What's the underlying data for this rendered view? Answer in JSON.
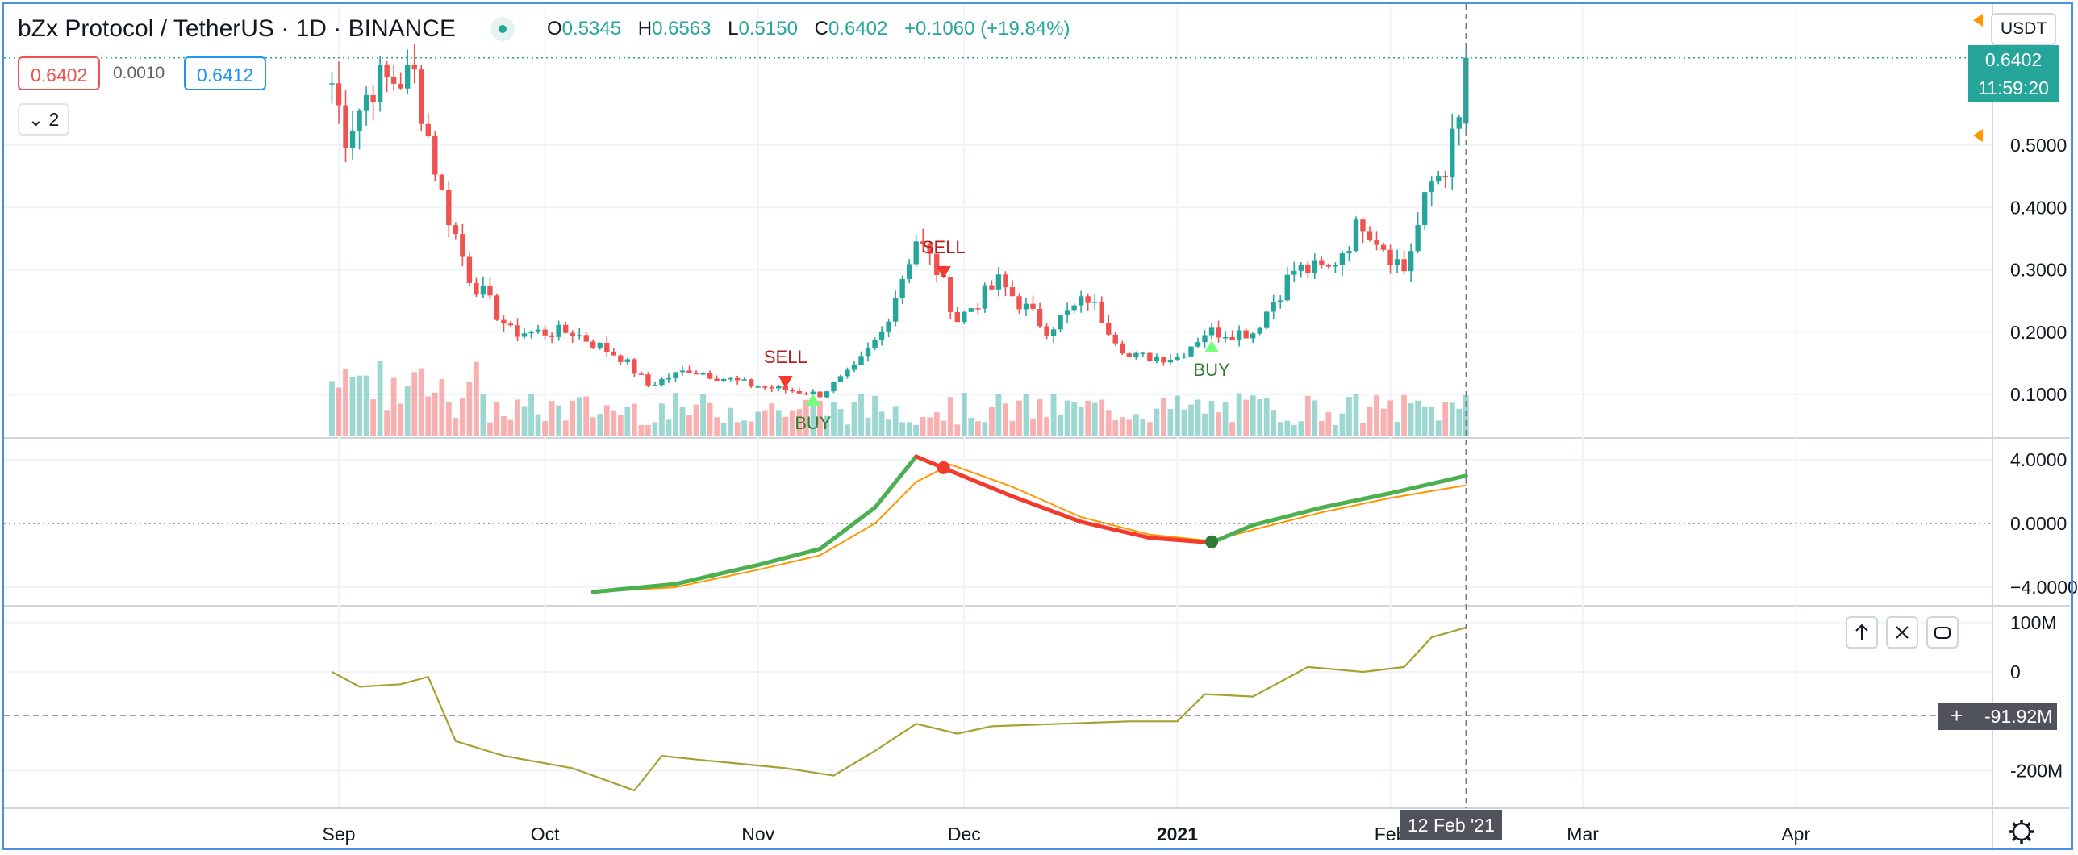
{
  "header": {
    "symbol": "bZx Protocol / TetherUS",
    "interval": "1D",
    "exchange": "BINANCE",
    "open_label": "O",
    "open": "0.5345",
    "high_label": "H",
    "high": "0.6563",
    "low_label": "L",
    "low": "0.5150",
    "close_label": "C",
    "close": "0.6402",
    "change": "+0.1060 (+19.84%)"
  },
  "trade": {
    "bid": "0.6402",
    "spread": "0.0010",
    "ask": "0.6412"
  },
  "indicators_toggle": "2",
  "currency": "USDT",
  "price_tags": {
    "last": "0.6402",
    "countdown": "11:59:20"
  },
  "crosshair": {
    "date_label": "12 Feb '21",
    "value_label": "-91.92M"
  },
  "signals": {
    "sell": "SELL",
    "buy": "BUY"
  },
  "colors": {
    "up": "#26a69a",
    "down": "#ef5350",
    "macd_up": "#4caf50",
    "macd_down": "#f23b2d",
    "signal": "#ff9800",
    "obv": "#a8a132",
    "frame": "#4a90e2"
  },
  "chart_data": [
    {
      "type": "candlestick",
      "title": "bZx Protocol / TetherUS",
      "y_ticks": [
        "0.1000",
        "0.2000",
        "0.3000",
        "0.4000",
        "0.5000"
      ],
      "x_ticks": [
        "Sep",
        "Oct",
        "Nov",
        "Dec",
        "2021",
        "Feb",
        "Mar",
        "Apr"
      ],
      "key_points": [
        {
          "date": "2020-08-31",
          "close": 0.6
        },
        {
          "date": "2020-09-02",
          "close": 0.52
        },
        {
          "date": "2020-09-06",
          "close": 0.6
        },
        {
          "date": "2020-09-12",
          "close": 0.61
        },
        {
          "date": "2020-09-16",
          "close": 0.42
        },
        {
          "date": "2020-09-20",
          "close": 0.29
        },
        {
          "date": "2020-09-26",
          "close": 0.2
        },
        {
          "date": "2020-10-05",
          "close": 0.2
        },
        {
          "date": "2020-10-12",
          "close": 0.16
        },
        {
          "date": "2020-10-16",
          "close": 0.115
        },
        {
          "date": "2020-10-22",
          "close": 0.14
        },
        {
          "date": "2020-10-31",
          "close": 0.115
        },
        {
          "date": "2020-11-10",
          "close": 0.1
        },
        {
          "date": "2020-11-15",
          "close": 0.14
        },
        {
          "date": "2020-11-19",
          "close": 0.2
        },
        {
          "date": "2020-11-24",
          "close": 0.35
        },
        {
          "date": "2020-11-27",
          "close": 0.3
        },
        {
          "date": "2020-11-30",
          "close": 0.22
        },
        {
          "date": "2020-12-06",
          "close": 0.28
        },
        {
          "date": "2020-12-13",
          "close": 0.205
        },
        {
          "date": "2020-12-19",
          "close": 0.255
        },
        {
          "date": "2020-12-25",
          "close": 0.16
        },
        {
          "date": "2021-01-01",
          "close": 0.16
        },
        {
          "date": "2021-01-05",
          "close": 0.2
        },
        {
          "date": "2021-01-12",
          "close": 0.2
        },
        {
          "date": "2021-01-18",
          "close": 0.3
        },
        {
          "date": "2021-01-23",
          "close": 0.3
        },
        {
          "date": "2021-01-28",
          "close": 0.38
        },
        {
          "date": "2021-02-03",
          "close": 0.3
        },
        {
          "date": "2021-02-07",
          "close": 0.44
        },
        {
          "date": "2021-02-09",
          "close": 0.47
        },
        {
          "date": "2021-02-11",
          "close": 0.5345
        },
        {
          "date": "2021-02-12",
          "open": 0.5345,
          "high": 0.6563,
          "low": 0.515,
          "close": 0.6402
        }
      ],
      "signals": [
        {
          "label": "SELL",
          "date": "2020-11-05"
        },
        {
          "label": "BUY",
          "date": "2020-11-09"
        },
        {
          "label": "SELL",
          "date": "2020-11-28"
        },
        {
          "label": "BUY",
          "date": "2021-01-06"
        }
      ]
    },
    {
      "type": "line",
      "y_ticks": [
        "4.0000",
        "0.0000",
        "−4.0000"
      ],
      "series": [
        {
          "values": [
            [
              "2020-10-08",
              -4.3
            ],
            [
              "2020-10-20",
              -3.8
            ],
            [
              "2020-11-01",
              -2.6
            ],
            [
              "2020-11-10",
              -1.6
            ],
            [
              "2020-11-18",
              1.0
            ],
            [
              "2020-11-24",
              4.2
            ],
            [
              "2020-11-29",
              3.3
            ],
            [
              "2020-12-08",
              1.7
            ],
            [
              "2020-12-18",
              0.1
            ],
            [
              "2020-12-28",
              -0.9
            ],
            [
              "2021-01-06",
              -1.2
            ],
            [
              "2021-01-12",
              -0.1
            ],
            [
              "2021-01-22",
              1.0
            ],
            [
              "2021-02-01",
              1.9
            ],
            [
              "2021-02-12",
              3.0
            ]
          ]
        },
        {
          "values": [
            [
              "2020-10-08",
              -4.3
            ],
            [
              "2020-10-20",
              -4.0
            ],
            [
              "2020-11-01",
              -2.9
            ],
            [
              "2020-11-10",
              -2.0
            ],
            [
              "2020-11-18",
              0.0
            ],
            [
              "2020-11-24",
              2.6
            ],
            [
              "2020-11-29",
              3.7
            ],
            [
              "2020-12-08",
              2.3
            ],
            [
              "2020-12-18",
              0.4
            ],
            [
              "2020-12-28",
              -0.7
            ],
            [
              "2021-01-06",
              -1.1
            ],
            [
              "2021-01-12",
              -0.4
            ],
            [
              "2021-01-22",
              0.7
            ],
            [
              "2021-02-01",
              1.6
            ],
            [
              "2021-02-12",
              2.4
            ]
          ]
        }
      ]
    },
    {
      "type": "line",
      "y_ticks": [
        "100M",
        "0",
        "-200M"
      ],
      "series": [
        {
          "values": [
            [
              "2020-08-31",
              0
            ],
            [
              "2020-09-04",
              -30
            ],
            [
              "2020-09-10",
              -25
            ],
            [
              "2020-09-14",
              -10
            ],
            [
              "2020-09-18",
              -140
            ],
            [
              "2020-09-25",
              -170
            ],
            [
              "2020-10-05",
              -195
            ],
            [
              "2020-10-14",
              -240
            ],
            [
              "2020-10-18",
              -170
            ],
            [
              "2020-10-25",
              -180
            ],
            [
              "2020-11-05",
              -195
            ],
            [
              "2020-11-12",
              -210
            ],
            [
              "2020-11-18",
              -160
            ],
            [
              "2020-11-24",
              -105
            ],
            [
              "2020-11-30",
              -125
            ],
            [
              "2020-12-05",
              -110
            ],
            [
              "2020-12-15",
              -105
            ],
            [
              "2020-12-25",
              -100
            ],
            [
              "2021-01-01",
              -100
            ],
            [
              "2021-01-05",
              -45
            ],
            [
              "2021-01-12",
              -50
            ],
            [
              "2021-01-20",
              10
            ],
            [
              "2021-01-28",
              0
            ],
            [
              "2021-02-03",
              10
            ],
            [
              "2021-02-07",
              70
            ],
            [
              "2021-02-12",
              90
            ]
          ]
        }
      ]
    }
  ]
}
